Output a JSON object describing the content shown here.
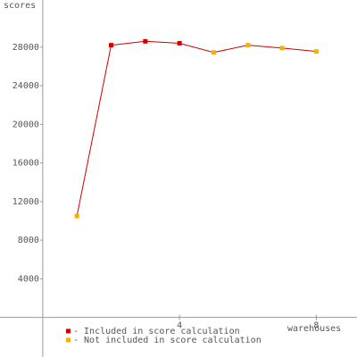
{
  "chart_data": {
    "type": "line",
    "y_label": "scores",
    "x_label": "warehouses",
    "x": [
      1,
      2,
      3,
      4,
      5,
      6,
      7,
      8
    ],
    "values": [
      10500,
      28200,
      28600,
      28400,
      27450,
      28200,
      27900,
      27550
    ],
    "included": [
      false,
      true,
      true,
      true,
      false,
      false,
      false,
      false
    ],
    "line_color": "#cc0000",
    "legend": [
      {
        "label": "- Included in score calculation",
        "color": "#cc0000"
      },
      {
        "label": "- Not included in score calculation",
        "color": "#f0b400"
      }
    ],
    "xlim": [
      -1.25,
      9.19
    ],
    "xticks": [
      4,
      8
    ],
    "ylim": [
      -4100,
      32880
    ],
    "yticks": [
      4000,
      8000,
      12000,
      16000,
      20000,
      24000,
      28000
    ]
  }
}
